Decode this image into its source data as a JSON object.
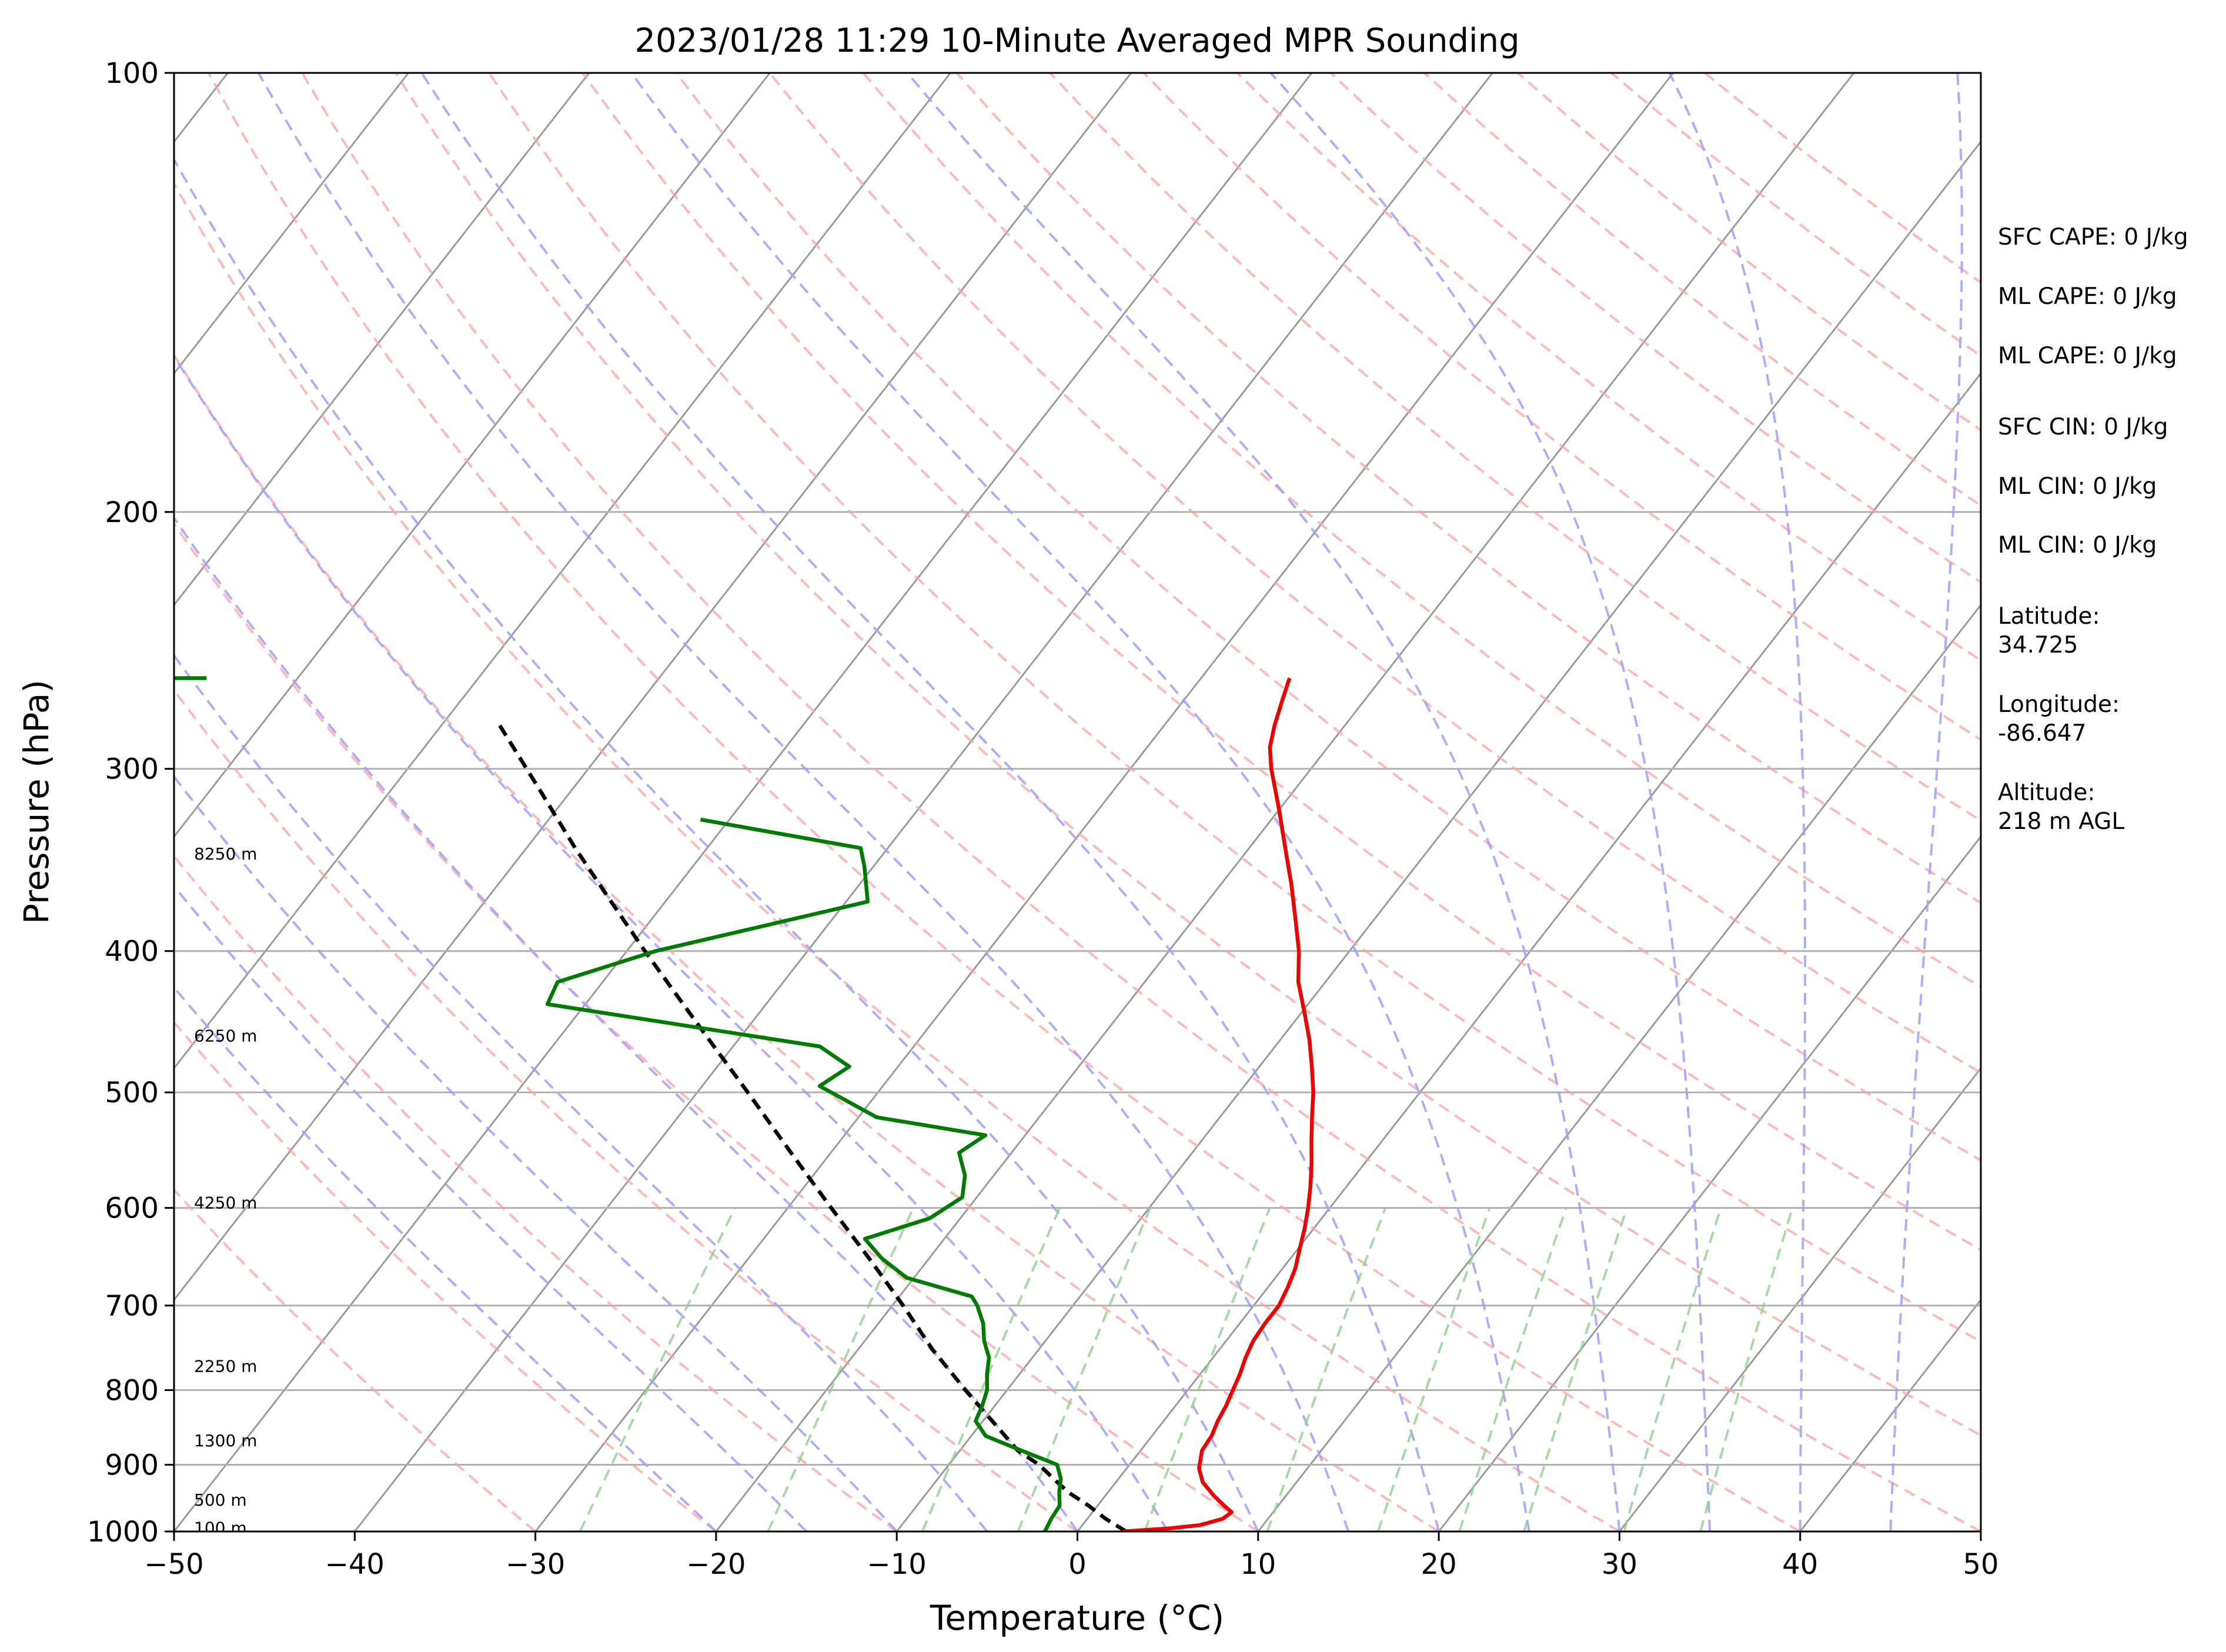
{
  "chart_data": {
    "type": "line",
    "chart_kind": "skew-T log-P sounding diagram",
    "title": "2023/01/28 11:29 10-Minute Averaged MPR Sounding",
    "xlabel": "Temperature (°C)",
    "ylabel": "Pressure (hPa)",
    "xlim": [
      -50,
      50
    ],
    "ylim": [
      1000,
      100
    ],
    "y_scale": "log",
    "grid": true,
    "x_ticks": [
      "−50",
      "−40",
      "−30",
      "−20",
      "−10",
      "0",
      "10",
      "20",
      "30",
      "40",
      "50"
    ],
    "y_ticks": [
      "100",
      "200",
      "300",
      "400",
      "500",
      "600",
      "700",
      "800",
      "900",
      "1000"
    ],
    "colors": {
      "temperature": "#ee0000",
      "dewpoint": "#007a00",
      "parcel": "#000000",
      "dry_adiabats": "#ff9f9f",
      "moist_adiabats": "#9f9fff",
      "mixing_ratio": "#8fcf8f",
      "isotherms": "#9a9a9a",
      "isobars": "#b0b0b0"
    },
    "series": [
      {
        "key": "temperature",
        "points": [
          [
            1000,
            2.5
          ],
          [
            995,
            5.0
          ],
          [
            990,
            6.5
          ],
          [
            980,
            7.5
          ],
          [
            970,
            7.7
          ],
          [
            960,
            7.0
          ],
          [
            945,
            6.0
          ],
          [
            925,
            4.8
          ],
          [
            905,
            4.0
          ],
          [
            880,
            3.4
          ],
          [
            860,
            3.3
          ],
          [
            840,
            3.0
          ],
          [
            820,
            2.8
          ],
          [
            800,
            2.5
          ],
          [
            780,
            2.2
          ],
          [
            760,
            1.8
          ],
          [
            740,
            1.5
          ],
          [
            720,
            1.4
          ],
          [
            700,
            1.4
          ],
          [
            680,
            1.1
          ],
          [
            660,
            0.7
          ],
          [
            640,
            0.1
          ],
          [
            620,
            -0.5
          ],
          [
            600,
            -1.2
          ],
          [
            580,
            -2.0
          ],
          [
            560,
            -2.9
          ],
          [
            540,
            -3.9
          ],
          [
            520,
            -4.9
          ],
          [
            500,
            -5.9
          ],
          [
            480,
            -7.1
          ],
          [
            460,
            -8.4
          ],
          [
            440,
            -9.9
          ],
          [
            420,
            -11.5
          ],
          [
            400,
            -12.8
          ],
          [
            380,
            -14.4
          ],
          [
            360,
            -16.1
          ],
          [
            340,
            -18.0
          ],
          [
            320,
            -20.0
          ],
          [
            300,
            -22.2
          ],
          [
            290,
            -23.2
          ],
          [
            280,
            -23.9
          ],
          [
            270,
            -24.5
          ],
          [
            260,
            -25.1
          ]
        ]
      },
      {
        "key": "dewpoint",
        "points": [
          [
            1000,
            -1.8
          ],
          [
            980,
            -2.0
          ],
          [
            960,
            -2.1
          ],
          [
            940,
            -2.7
          ],
          [
            920,
            -3.2
          ],
          [
            900,
            -4.0
          ],
          [
            880,
            -6.6
          ],
          [
            860,
            -9.2
          ],
          [
            840,
            -10.4
          ],
          [
            820,
            -10.7
          ],
          [
            800,
            -11.1
          ],
          [
            780,
            -11.8
          ],
          [
            760,
            -12.4
          ],
          [
            740,
            -13.4
          ],
          [
            720,
            -14.2
          ],
          [
            700,
            -15.3
          ],
          [
            690,
            -16.0
          ],
          [
            670,
            -20.4
          ],
          [
            650,
            -22.6
          ],
          [
            630,
            -24.4
          ],
          [
            610,
            -21.7
          ],
          [
            590,
            -20.8
          ],
          [
            570,
            -21.6
          ],
          [
            550,
            -22.9
          ],
          [
            535,
            -22.2
          ],
          [
            520,
            -29.0
          ],
          [
            495,
            -33.5
          ],
          [
            480,
            -32.7
          ],
          [
            465,
            -35.2
          ],
          [
            435,
            -52.1
          ],
          [
            420,
            -52.5
          ],
          [
            400,
            -48.4
          ],
          [
            370,
            -38.8
          ],
          [
            350,
            -40.5
          ],
          [
            340,
            -41.5
          ],
          [
            325,
            -51.6
          ]
        ]
      },
      {
        "key": "parcel",
        "points": [
          [
            1000,
            2.7
          ],
          [
            980,
            1.0
          ],
          [
            960,
            -0.5
          ],
          [
            940,
            -2.2
          ],
          [
            920,
            -3.6
          ],
          [
            900,
            -5.0
          ],
          [
            880,
            -6.8
          ],
          [
            850,
            -8.8
          ],
          [
            800,
            -12.3
          ],
          [
            750,
            -15.9
          ],
          [
            700,
            -19.4
          ],
          [
            650,
            -23.3
          ],
          [
            600,
            -27.6
          ],
          [
            550,
            -32.2
          ],
          [
            500,
            -37.2
          ],
          [
            450,
            -42.8
          ],
          [
            400,
            -49.0
          ],
          [
            370,
            -53.0
          ],
          [
            340,
            -57.3
          ],
          [
            310,
            -61.8
          ],
          [
            280,
            -66.8
          ]
        ]
      }
    ],
    "wind_barb_stub": {
      "pressure": 260,
      "t_from": -50,
      "t_to": -48.2
    },
    "height_labels": [
      {
        "label": "8250 m",
        "pressure": 343
      },
      {
        "label": "6250 m",
        "pressure": 457
      },
      {
        "label": "4250 m",
        "pressure": 595
      },
      {
        "label": "2250 m",
        "pressure": 770
      },
      {
        "label": "1300 m",
        "pressure": 866
      },
      {
        "label": "500 m",
        "pressure": 951
      },
      {
        "label": "100 m",
        "pressure": 994
      }
    ]
  },
  "side_info": {
    "sfc_cape": "SFC CAPE: 0 J/kg",
    "ml_cape_1": "ML CAPE: 0 J/kg",
    "ml_cape_2": "ML CAPE: 0 J/kg",
    "sfc_cin": "SFC CIN: 0 J/kg",
    "ml_cin_1": "ML CIN: 0 J/kg",
    "ml_cin_2": "ML CIN: 0 J/kg",
    "latitude_label": "Latitude:",
    "latitude_value": "34.725",
    "longitude_label": "Longitude:",
    "longitude_value": "-86.647",
    "altitude_label": "Altitude:",
    "altitude_value": "218 m AGL"
  }
}
